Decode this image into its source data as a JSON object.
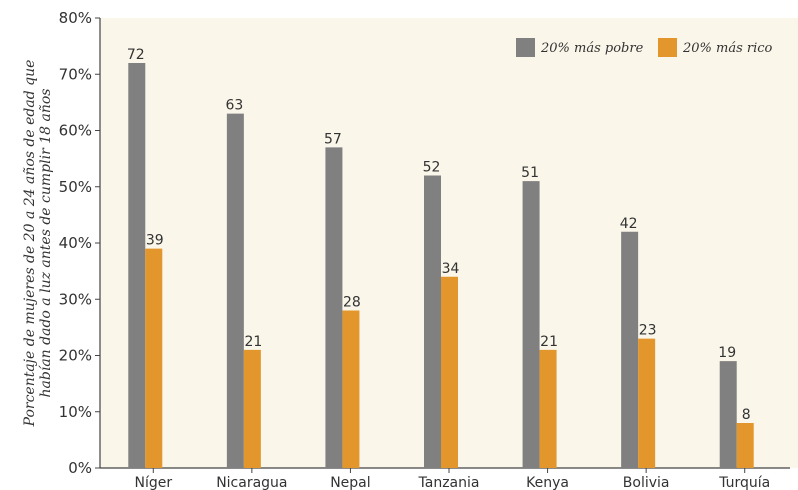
{
  "chart_data": {
    "type": "bar",
    "categories": [
      "Níger",
      "Nicaragua",
      "Nepal",
      "Tanzania",
      "Kenya",
      "Bolivia",
      "Turquía"
    ],
    "series": [
      {
        "name": "20% más pobre",
        "values": [
          72,
          63,
          57,
          52,
          51,
          42,
          19
        ],
        "color": "#808080"
      },
      {
        "name": "20% más rico",
        "values": [
          39,
          21,
          28,
          34,
          21,
          23,
          8
        ],
        "color": "#E3962B"
      }
    ],
    "ylabel_lines": [
      "Porcentaje de mujeres de 20 a 24 años de edad que",
      "habían dado a luz antes de cumplir 18 años"
    ],
    "yticks": [
      "0%",
      "10%",
      "20%",
      "30%",
      "40%",
      "50%",
      "60%",
      "70%",
      "80%"
    ],
    "ylim": [
      0,
      80
    ],
    "legend_position": "top-right",
    "background_color": "#FAF6EA",
    "grid": false
  }
}
